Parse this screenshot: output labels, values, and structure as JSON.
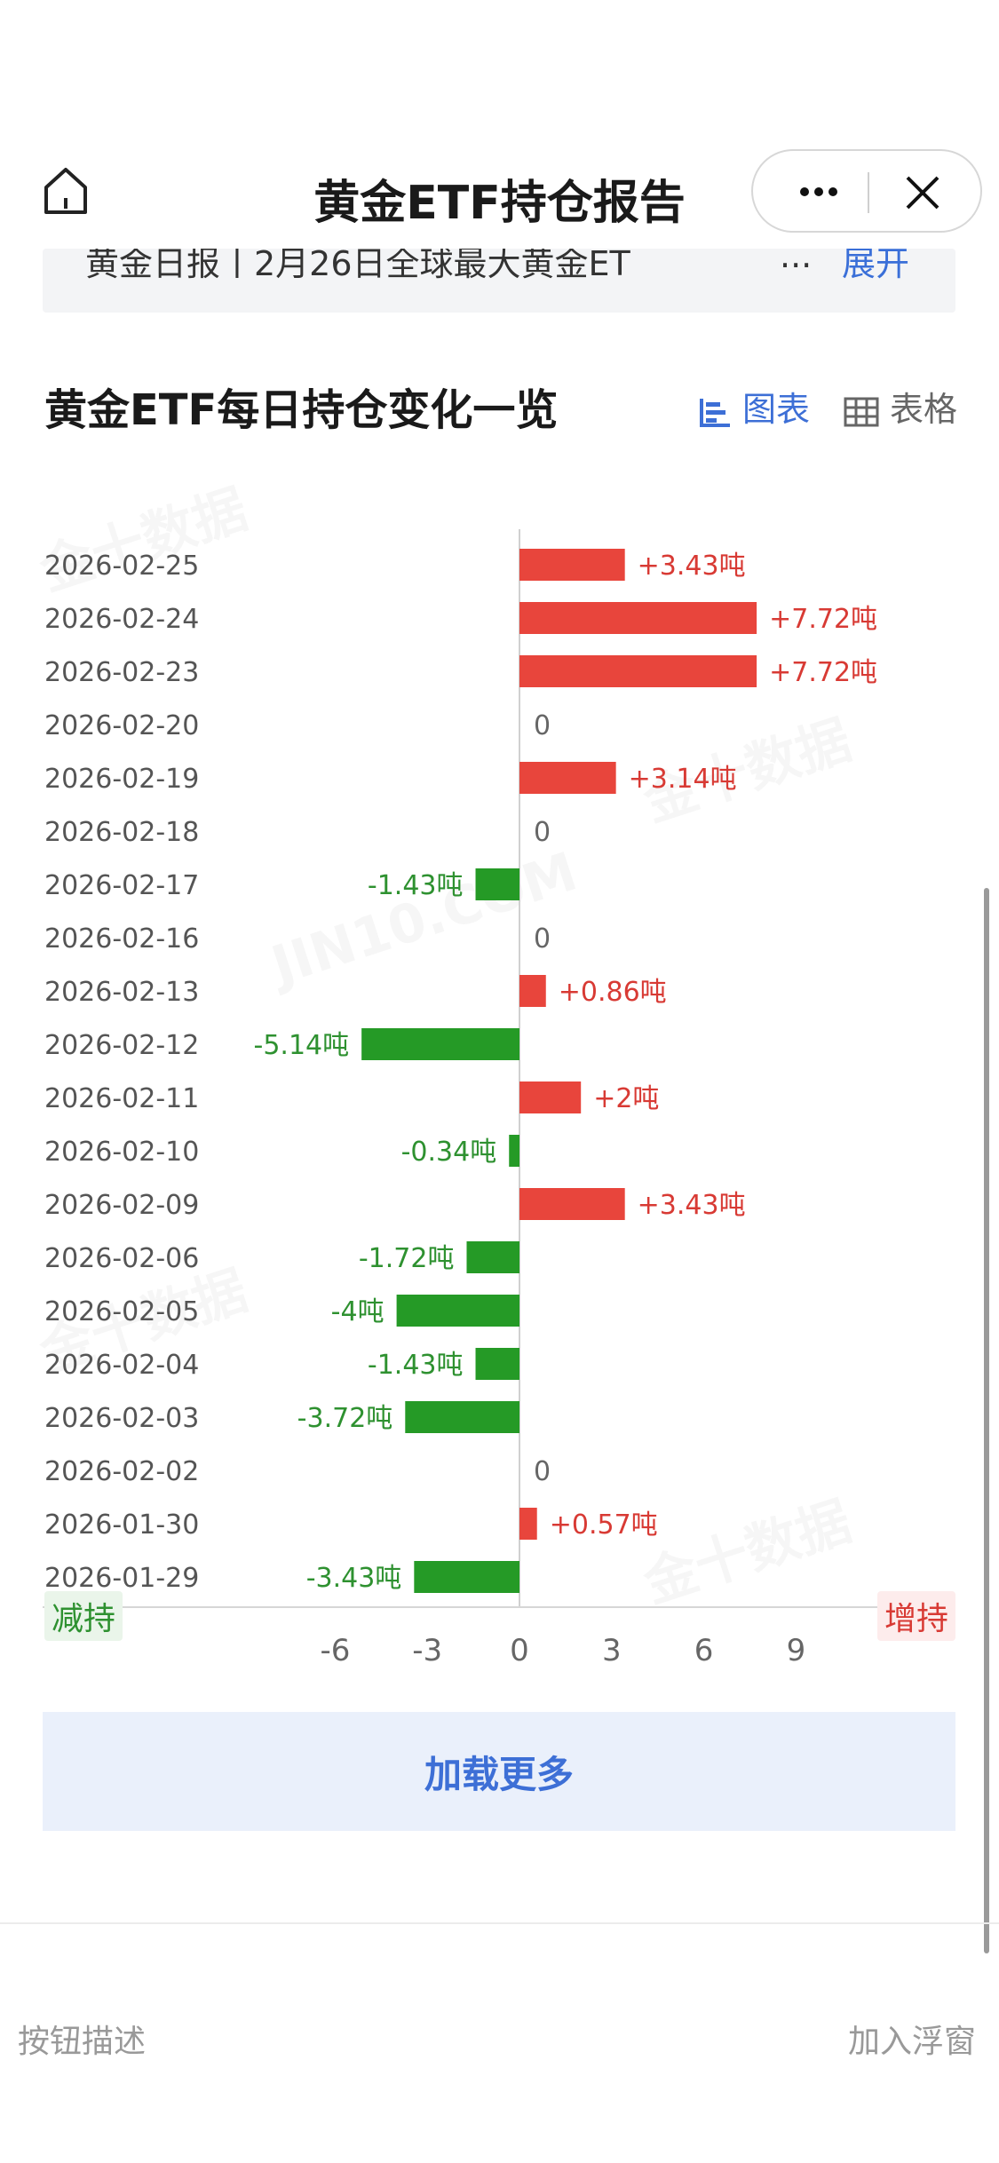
{
  "header": {
    "title": "黄金ETF持仓报告",
    "home_icon": "home-icon",
    "more_icon": "more-icon",
    "close_icon": "close-icon"
  },
  "news_strip": {
    "text": "黄金日报丨2月26日全球最大黄金ET",
    "ellipsis": "...",
    "expand_label": "展开"
  },
  "section": {
    "title": "黄金ETF每日持仓变化一览",
    "tab_chart_label": "图表",
    "tab_table_label": "表格"
  },
  "chart_data": {
    "type": "bar",
    "orientation": "horizontal",
    "categories": [
      "2026-02-25",
      "2026-02-24",
      "2026-02-23",
      "2026-02-20",
      "2026-02-19",
      "2026-02-18",
      "2026-02-17",
      "2026-02-16",
      "2026-02-13",
      "2026-02-12",
      "2026-02-11",
      "2026-02-10",
      "2026-02-09",
      "2026-02-06",
      "2026-02-05",
      "2026-02-04",
      "2026-02-03",
      "2026-02-02",
      "2026-01-30",
      "2026-01-29"
    ],
    "values": [
      3.43,
      7.72,
      7.72,
      0,
      3.14,
      0,
      -1.43,
      0,
      0.86,
      -5.14,
      2,
      -0.34,
      3.43,
      -1.72,
      -4,
      -1.43,
      -3.72,
      0,
      0.57,
      -3.43
    ],
    "data_labels": [
      "+3.43吨",
      "+7.72吨",
      "+7.72吨",
      "0",
      "+3.14吨",
      "0",
      "-1.43吨",
      "0",
      "+0.86吨",
      "-5.14吨",
      "+2吨",
      "-0.34吨",
      "+3.43吨",
      "-1.72吨",
      "-4吨",
      "-1.43吨",
      "-3.72吨",
      "0",
      "+0.57吨",
      "-3.43吨"
    ],
    "x_ticks": [
      "-6",
      "-3",
      "0",
      "3",
      "6",
      "9"
    ],
    "xlim": [
      -6,
      9
    ],
    "positive_color": "#e8453c",
    "negative_color": "#259a26",
    "legend_negative": "减持",
    "legend_positive": "增持"
  },
  "load_more_label": "加载更多",
  "footer": {
    "left_text": "按钮描述",
    "right_text": "加入浮窗"
  }
}
